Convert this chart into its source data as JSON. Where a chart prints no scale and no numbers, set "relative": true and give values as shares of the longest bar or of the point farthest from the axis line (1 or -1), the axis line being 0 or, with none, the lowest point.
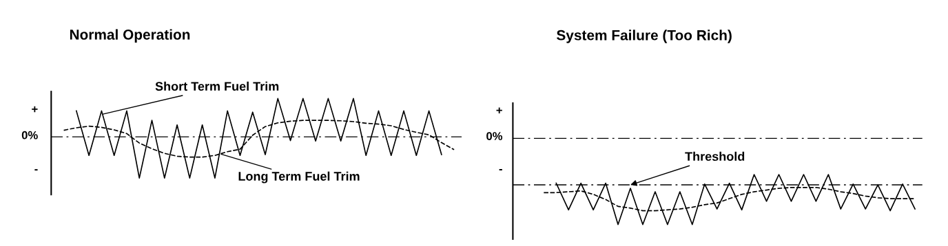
{
  "chart_data": [
    {
      "type": "line",
      "title": "Normal Operation",
      "relative": true,
      "categories": [
        null,
        null,
        null,
        null,
        null,
        null,
        null,
        null,
        null,
        null,
        null,
        null,
        null,
        null,
        null,
        null,
        null,
        null,
        null,
        null,
        null,
        null,
        null,
        null,
        null,
        null,
        null,
        null,
        null,
        null,
        null,
        null
      ],
      "series": [
        {
          "color": "#000000",
          "line_style": "solid",
          "values": [
            null,
            0.63,
            -0.45,
            0.63,
            -0.45,
            0.63,
            -1,
            0.4,
            -1,
            0.29,
            -1,
            0.29,
            -1,
            0.63,
            -0.45,
            0.6,
            -0.43,
            0.93,
            -0.09,
            0.93,
            -0.1,
            0.93,
            -0.1,
            0.93,
            -0.45,
            0.63,
            -0.45,
            0.63,
            -0.45,
            0.63,
            -0.43,
            null
          ]
        },
        {
          "color": "#000000",
          "line_style": "dashed",
          "values": [
            0.16,
            0.22,
            0.26,
            0.23,
            0.17,
            0.08,
            -0.15,
            -0.29,
            -0.4,
            -0.47,
            -0.49,
            -0.49,
            -0.45,
            -0.36,
            -0.3,
            0.04,
            0.25,
            0.34,
            0.38,
            0.4,
            0.4,
            0.4,
            0.39,
            0.37,
            0.33,
            0.31,
            0.27,
            0.18,
            0.11,
            0.05,
            -0.14,
            -0.31
          ]
        }
      ],
      "ref_lines": [
        {
          "axis": "y",
          "value": 0,
          "color": "#000000",
          "line_style": "dashdot"
        }
      ],
      "annotations": [
        "+",
        "0%",
        "-",
        "Short Term Fuel Trim",
        "Long Term Fuel Trim"
      ]
    },
    {
      "type": "line",
      "title": "System Failure (Too Rich)",
      "relative": true,
      "categories": [
        null,
        null,
        null,
        null,
        null,
        null,
        null,
        null,
        null,
        null,
        null,
        null,
        null,
        null,
        null,
        null,
        null,
        null,
        null,
        null,
        null,
        null,
        null,
        null,
        null,
        null,
        null,
        null,
        null,
        null,
        null
      ],
      "series": [
        {
          "color": "#000000",
          "line_style": "solid",
          "values": [
            null,
            -0.52,
            -0.83,
            -0.52,
            -0.83,
            -0.52,
            -1,
            -0.58,
            -1,
            -0.62,
            -1,
            -0.62,
            -1,
            -0.53,
            -0.82,
            -0.52,
            -0.83,
            -0.42,
            -0.73,
            -0.42,
            -0.73,
            -0.42,
            -0.73,
            -0.42,
            -0.82,
            -0.53,
            -0.82,
            -0.54,
            -0.84,
            -0.53,
            -0.82
          ]
        },
        {
          "color": "#000000",
          "line_style": "dashed",
          "values": [
            -0.63,
            -0.63,
            -0.62,
            -0.61,
            -0.65,
            -0.71,
            -0.79,
            -0.81,
            -0.84,
            -0.84,
            -0.83,
            -0.82,
            -0.8,
            -0.77,
            -0.75,
            -0.7,
            -0.65,
            -0.62,
            -0.6,
            -0.58,
            -0.57,
            -0.57,
            -0.57,
            -0.59,
            -0.62,
            -0.64,
            -0.67,
            -0.69,
            -0.7,
            -0.7,
            -0.7
          ]
        }
      ],
      "ref_lines": [
        {
          "axis": "y",
          "value": 0,
          "color": "#000000",
          "line_style": "dashdot"
        },
        {
          "axis": "y",
          "value": -0.54,
          "color": "#000000",
          "line_style": "dashdot"
        }
      ],
      "annotations": [
        "+",
        "0%",
        "-",
        "Threshold"
      ]
    }
  ]
}
